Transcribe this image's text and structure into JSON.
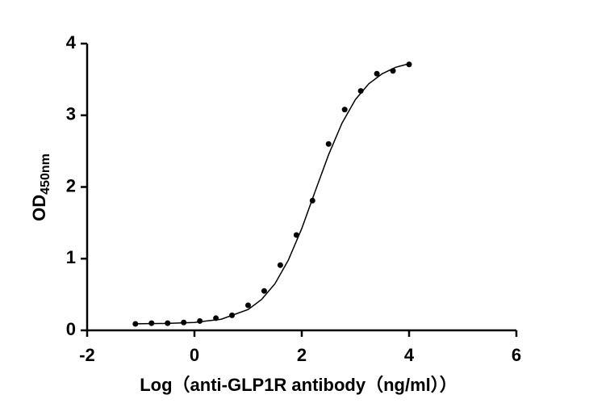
{
  "chart_data": {
    "type": "scatter",
    "x": [
      -1.1,
      -0.8,
      -0.5,
      -0.2,
      0.1,
      0.4,
      0.7,
      1.0,
      1.3,
      1.6,
      1.9,
      2.2,
      2.5,
      2.8,
      3.1,
      3.4,
      3.7,
      4.0
    ],
    "values": [
      0.09,
      0.1,
      0.1,
      0.11,
      0.13,
      0.17,
      0.21,
      0.35,
      0.55,
      0.91,
      1.33,
      1.81,
      2.6,
      3.08,
      3.34,
      3.58,
      3.62,
      3.71
    ],
    "curve": {
      "x": [
        -1.1,
        -0.5,
        0,
        0.5,
        1.0,
        1.25,
        1.5,
        1.75,
        2.0,
        2.25,
        2.5,
        2.75,
        3.0,
        3.25,
        3.5,
        3.75,
        4.0
      ],
      "values": [
        0.092,
        0.097,
        0.11,
        0.155,
        0.29,
        0.43,
        0.65,
        0.98,
        1.42,
        1.94,
        2.45,
        2.89,
        3.22,
        3.44,
        3.58,
        3.67,
        3.72
      ]
    },
    "color": "#000000",
    "xlim": [
      -2,
      6
    ],
    "xticks": [
      -2,
      0,
      2,
      4,
      6
    ],
    "ylim": [
      0,
      4
    ],
    "yticks": [
      0,
      1,
      2,
      3,
      4
    ],
    "xlabel": "Log（anti-GLP1R antibody（ng/ml））",
    "ylabel": "OD",
    "ylabel_sub": "450nm"
  }
}
